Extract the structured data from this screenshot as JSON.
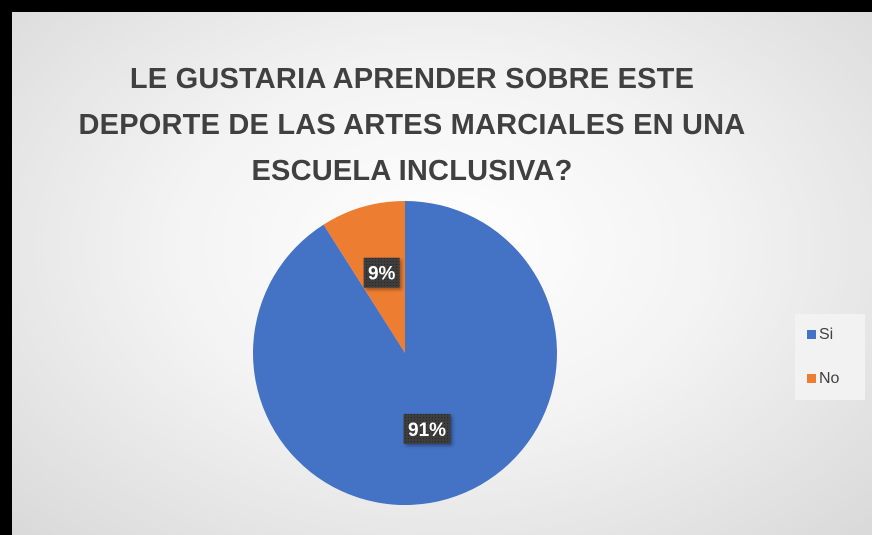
{
  "chart_data": {
    "type": "pie",
    "title": [
      "LE GUSTARIA APRENDER SOBRE ESTE",
      "DEPORTE DE LAS ARTES MARCIALES EN UNA",
      "ESCUELA INCLUSIVA?"
    ],
    "categories": [
      "Si",
      "No"
    ],
    "values": [
      91,
      9
    ],
    "data_labels": [
      "91%",
      "9%"
    ],
    "colors": [
      "#4472c4",
      "#ed7d31"
    ],
    "legend_position": "right"
  }
}
